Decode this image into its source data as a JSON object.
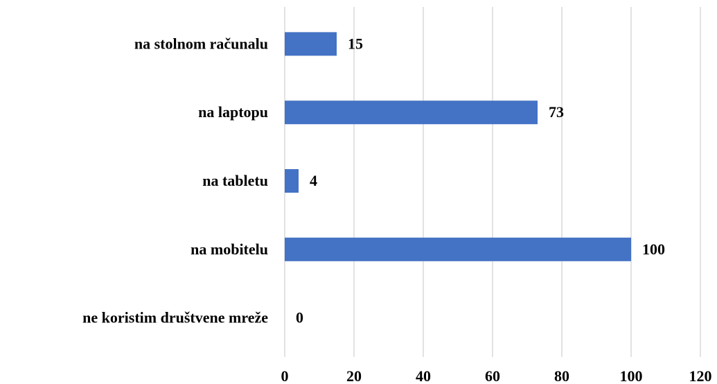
{
  "chart_data": {
    "type": "bar",
    "orientation": "horizontal",
    "categories": [
      "na stolnom računalu",
      "na laptopu",
      "na tabletu",
      "na mobitelu",
      "ne koristim društvene mreže"
    ],
    "values": [
      15,
      73,
      4,
      100,
      0
    ],
    "color": "#4472c4",
    "xlim": [
      0,
      120
    ],
    "xticks": [
      0,
      20,
      40,
      60,
      80,
      100,
      120
    ],
    "grid": true
  }
}
